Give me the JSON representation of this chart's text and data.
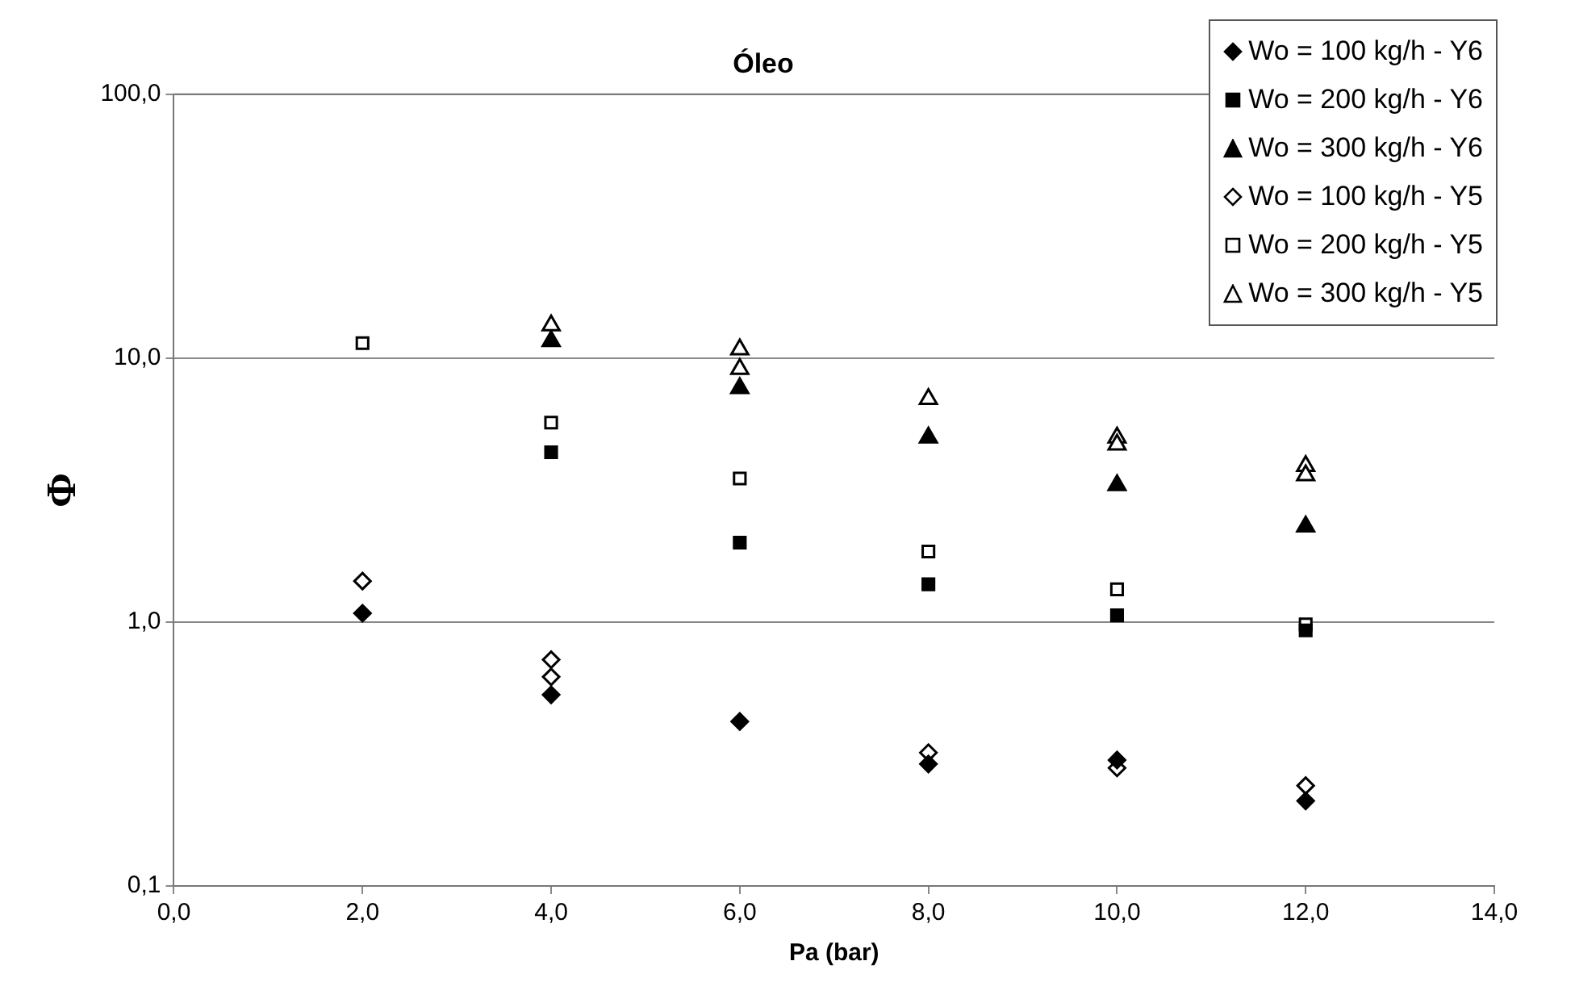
{
  "chart_data": {
    "type": "scatter",
    "title": "Óleo",
    "xlabel": "Pa (bar)",
    "ylabel": "Φ",
    "xlim": [
      0,
      14
    ],
    "xticks": [
      {
        "value": 0,
        "label": "0,0"
      },
      {
        "value": 2,
        "label": "2,0"
      },
      {
        "value": 4,
        "label": "4,0"
      },
      {
        "value": 6,
        "label": "6,0"
      },
      {
        "value": 8,
        "label": "8,0"
      },
      {
        "value": 10,
        "label": "10,0"
      },
      {
        "value": 12,
        "label": "12,0"
      },
      {
        "value": 14,
        "label": "14,0"
      }
    ],
    "ylim": [
      0.1,
      100
    ],
    "yticks": [
      {
        "value": 0.1,
        "label": "0,1"
      },
      {
        "value": 1,
        "label": "1,0"
      },
      {
        "value": 10,
        "label": "10,0"
      },
      {
        "value": 100,
        "label": "100,0"
      }
    ],
    "log": "y",
    "grid": "y",
    "legend": "top right",
    "series": [
      {
        "name": "Wo = 100 kg/h - Y6",
        "color": "#000000",
        "marker": "diamond",
        "x": [
          2,
          4,
          6,
          8,
          10,
          12
        ],
        "values": [
          1.08,
          0.53,
          0.42,
          0.29,
          0.3,
          0.21
        ]
      },
      {
        "name": "Wo = 200 kg/h - Y6",
        "color": "#000000",
        "marker": "square",
        "x": [
          4,
          6,
          8,
          10,
          12
        ],
        "values": [
          4.4,
          2.0,
          1.39,
          1.06,
          0.93
        ]
      },
      {
        "name": "Wo = 300 kg/h - Y6",
        "color": "#000000",
        "marker": "triangle",
        "x": [
          4,
          6,
          8,
          10,
          12
        ],
        "values": [
          11.6,
          7.7,
          5.0,
          3.3,
          2.3
        ]
      },
      {
        "name": "Wo = 100 kg/h - Y5",
        "color": "#ffffff",
        "marker": "diamond",
        "x": [
          2,
          4,
          4,
          8,
          10,
          12
        ],
        "values": [
          1.43,
          0.72,
          0.62,
          0.32,
          0.28,
          0.24
        ]
      },
      {
        "name": "Wo = 200 kg/h - Y5",
        "color": "#ffffff",
        "marker": "square",
        "x": [
          2,
          4,
          6,
          8,
          10,
          12
        ],
        "values": [
          11.4,
          5.7,
          3.5,
          1.85,
          1.33,
          0.98
        ]
      },
      {
        "name": "Wo = 300 kg/h - Y5",
        "color": "#ffffff",
        "marker": "triangle",
        "x": [
          4,
          6,
          6,
          8,
          10,
          10,
          12,
          12
        ],
        "values": [
          13.3,
          10.8,
          9.1,
          7.0,
          5.0,
          4.7,
          3.9,
          3.6
        ]
      }
    ]
  }
}
